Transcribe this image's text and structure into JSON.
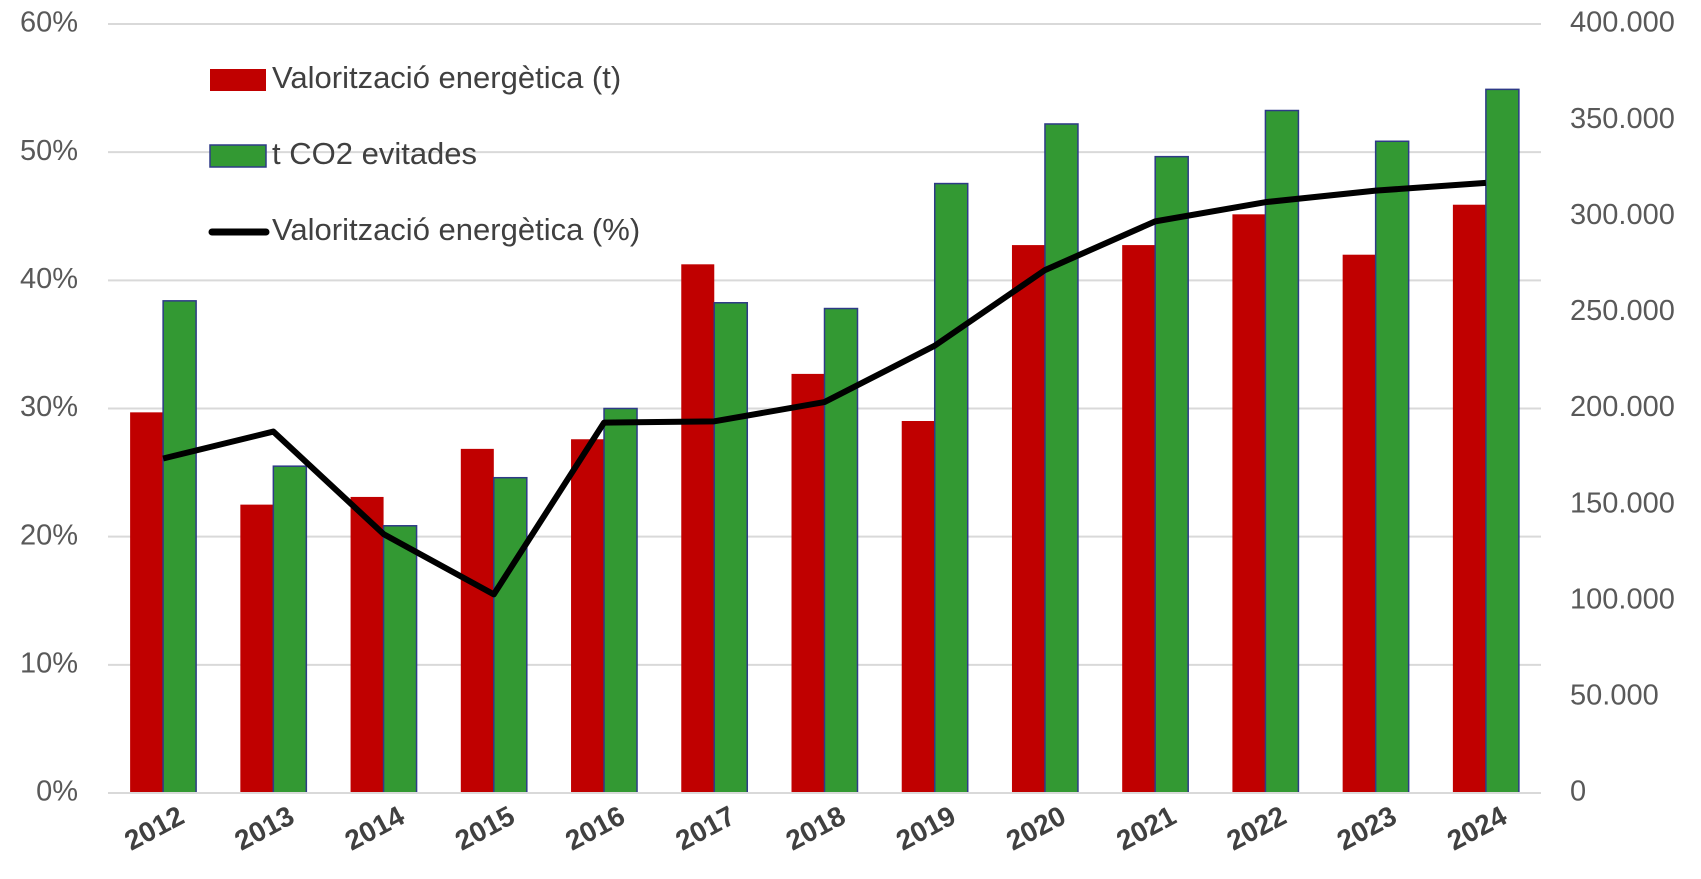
{
  "chart_data": {
    "type": "bar",
    "categories": [
      "2012",
      "2013",
      "2014",
      "2015",
      "2016",
      "2017",
      "2018",
      "2019",
      "2020",
      "2021",
      "2022",
      "2023",
      "2024"
    ],
    "series": [
      {
        "name": "Valorització energètica (t)",
        "type": "bar",
        "axis": "y2",
        "color": "#c00000",
        "values": [
          198000,
          150000,
          154000,
          179000,
          184000,
          275000,
          218000,
          193500,
          285000,
          285000,
          301000,
          280000,
          306000
        ]
      },
      {
        "name": "t CO2 evitades",
        "type": "bar",
        "axis": "y2",
        "color": "#339933",
        "values": [
          256000,
          170000,
          139000,
          164000,
          200000,
          255000,
          252000,
          317000,
          348000,
          331000,
          355000,
          339000,
          366000
        ]
      },
      {
        "name": "Valorització energètica (%)",
        "type": "line",
        "axis": "y",
        "color": "#000000",
        "values": [
          26.1,
          28.2,
          20.2,
          15.5,
          28.9,
          29.0,
          30.5,
          34.9,
          40.8,
          44.6,
          46.1,
          47.0,
          47.6
        ]
      }
    ],
    "ylim": [
      0,
      60
    ],
    "yticks": [
      {
        "value": 0,
        "label": "0%"
      },
      {
        "value": 10,
        "label": "10%"
      },
      {
        "value": 20,
        "label": "20%"
      },
      {
        "value": 30,
        "label": "30%"
      },
      {
        "value": 40,
        "label": "40%"
      },
      {
        "value": 50,
        "label": "50%"
      },
      {
        "value": 60,
        "label": "60%"
      }
    ],
    "y2lim": [
      0,
      400000
    ],
    "y2ticks": [
      0,
      {
        "value": 50000,
        "label": "50.000"
      },
      {
        "value": 100000,
        "label": "100.000"
      },
      {
        "value": 150000,
        "label": "150.000"
      },
      {
        "value": 200000,
        "label": "200.000"
      },
      {
        "value": 250000,
        "label": "250.000"
      },
      {
        "value": 300000,
        "label": "300.000"
      },
      {
        "value": 350000,
        "label": "350.000"
      },
      {
        "value": 400000,
        "label": "400.000"
      }
    ],
    "grid": true,
    "legend": "upper left"
  }
}
